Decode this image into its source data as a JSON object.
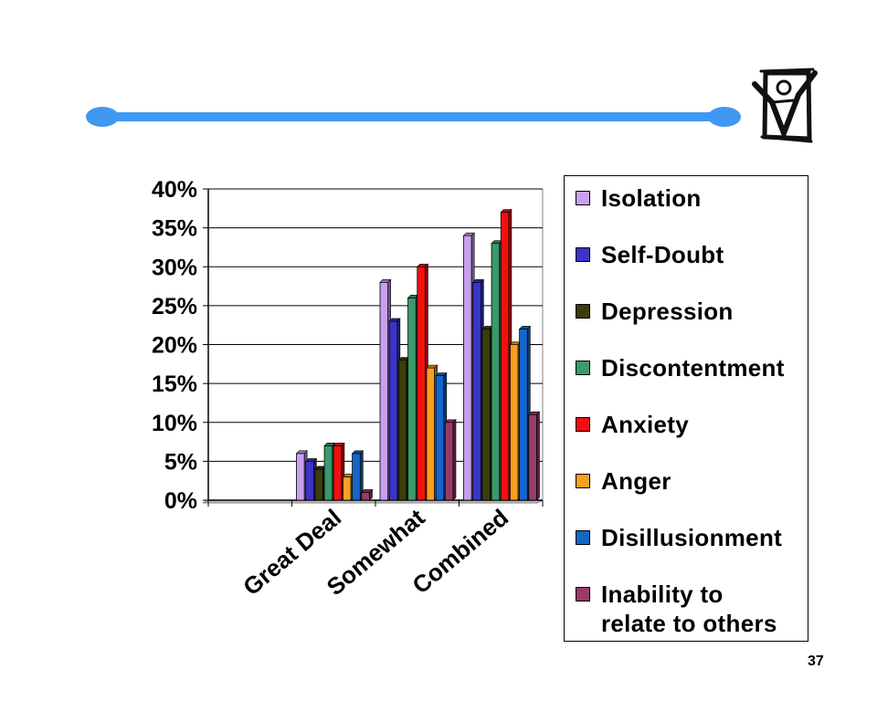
{
  "page_number": "37",
  "decor": {
    "bar_color": "#3f99f2",
    "logo_icon": "checkbox-with-figure-icon"
  },
  "chart_data": {
    "type": "bar",
    "categories": [
      "Great Deal",
      "Somewhat",
      "Combined"
    ],
    "ylim": [
      0,
      40
    ],
    "y_ticks": [
      "0%",
      "5%",
      "10%",
      "15%",
      "20%",
      "25%",
      "30%",
      "35%",
      "40%"
    ],
    "grid": true,
    "legend_position": "right",
    "series": [
      {
        "name": "Isolation",
        "color": "#c8a0f0",
        "values": [
          6,
          28,
          34
        ]
      },
      {
        "name": "Self-Doubt",
        "color": "#3a35c8",
        "values": [
          5,
          23,
          28
        ]
      },
      {
        "name": "Depression",
        "color": "#3c3c0c",
        "values": [
          4,
          18,
          22
        ]
      },
      {
        "name": "Discontentment",
        "color": "#3a9a6c",
        "values": [
          7,
          26,
          33
        ]
      },
      {
        "name": "Anxiety",
        "color": "#f01010",
        "values": [
          7,
          30,
          37
        ]
      },
      {
        "name": "Anger",
        "color": "#f7a020",
        "values": [
          3,
          17,
          20
        ]
      },
      {
        "name": "Disillusionment",
        "color": "#1466c8",
        "values": [
          6,
          16,
          22
        ]
      },
      {
        "name": "Inability to relate to others",
        "color": "#9a3a6a",
        "values": [
          1,
          10,
          11
        ]
      }
    ],
    "legend_lines": [
      [
        "Isolation"
      ],
      [
        "Self-Doubt"
      ],
      [
        "Depression"
      ],
      [
        "Discontentment"
      ],
      [
        "Anxiety"
      ],
      [
        "Anger"
      ],
      [
        "Disillusionment"
      ],
      [
        "Inability to",
        "relate to others"
      ]
    ]
  }
}
